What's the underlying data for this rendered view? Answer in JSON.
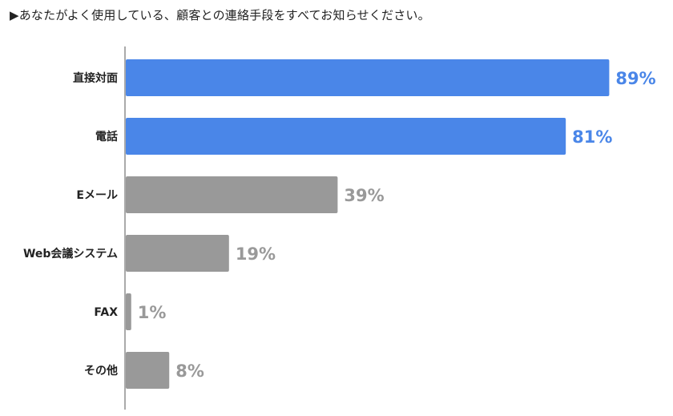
{
  "chart_data": {
    "type": "bar",
    "orientation": "horizontal",
    "title": "▶あなたがよく使用している、顧客との連絡手段をすべてお知らせください。",
    "categories": [
      "直接対面",
      "電話",
      "Eメール",
      "Web会議システム",
      "FAX",
      "その他"
    ],
    "values": [
      89,
      81,
      39,
      19,
      1,
      8
    ],
    "value_labels": [
      "89%",
      "81%",
      "39%",
      "19%",
      "1%",
      "8%"
    ],
    "xlim": [
      0,
      100
    ],
    "grid": false,
    "legend": "none",
    "colors": {
      "highlight": "#4a86e8",
      "default": "#999999",
      "axis": "#555555"
    },
    "highlighted": [
      true,
      true,
      false,
      false,
      false,
      false
    ]
  }
}
